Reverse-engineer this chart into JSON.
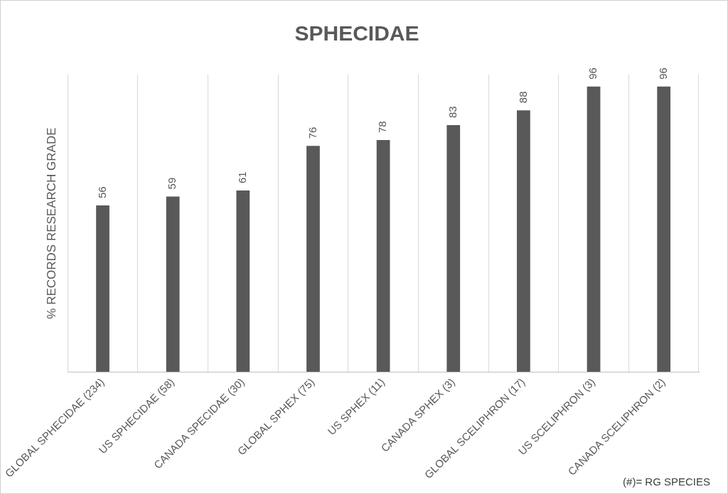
{
  "chart_data": {
    "type": "bar",
    "title": "SPHECIDAE",
    "ylabel": "% RECORDS RESEARCH GRADE",
    "categories": [
      "GLOBAL SPHECIDAE (234)",
      "US SPHECIDAE (58)",
      "CANADA SPECIDAE (30)",
      "GLOBAL SPHEX (75)",
      "US SPHEX (11)",
      "CANADA SPHEX (3)",
      "GLOBAL SCELIPHRON (17)",
      "US SCELIPHRON (3)",
      "CANADA SCELIPHRON (2)"
    ],
    "values": [
      56,
      59,
      61,
      76,
      78,
      83,
      88,
      96,
      96
    ],
    "color": "#595959",
    "data_labels": true,
    "grid": "x",
    "annotations": [
      "(#)= RG SPECIES"
    ]
  }
}
